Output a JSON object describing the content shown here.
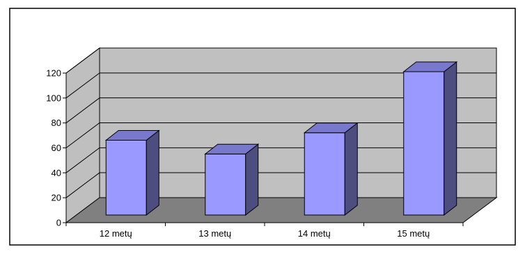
{
  "chart_data": {
    "type": "bar",
    "style": "3d-column",
    "title": "",
    "xlabel": "",
    "ylabel": "",
    "categories": [
      "12 metų",
      "13 metų",
      "14 metų",
      "15 metų"
    ],
    "values": [
      60,
      49,
      66,
      115
    ],
    "ylim": [
      0,
      120
    ],
    "yticks": [
      0,
      20,
      40,
      60,
      80,
      100,
      120
    ],
    "grid": true,
    "legend": "none",
    "colors": {
      "bar_front": "#9999ff",
      "bar_side": "#4d4d80",
      "bar_top": "#7878cc",
      "back_wall": "#c0c0c0",
      "side_wall": "#bfbfbf",
      "floor": "#808080",
      "gridline": "#000000"
    }
  }
}
